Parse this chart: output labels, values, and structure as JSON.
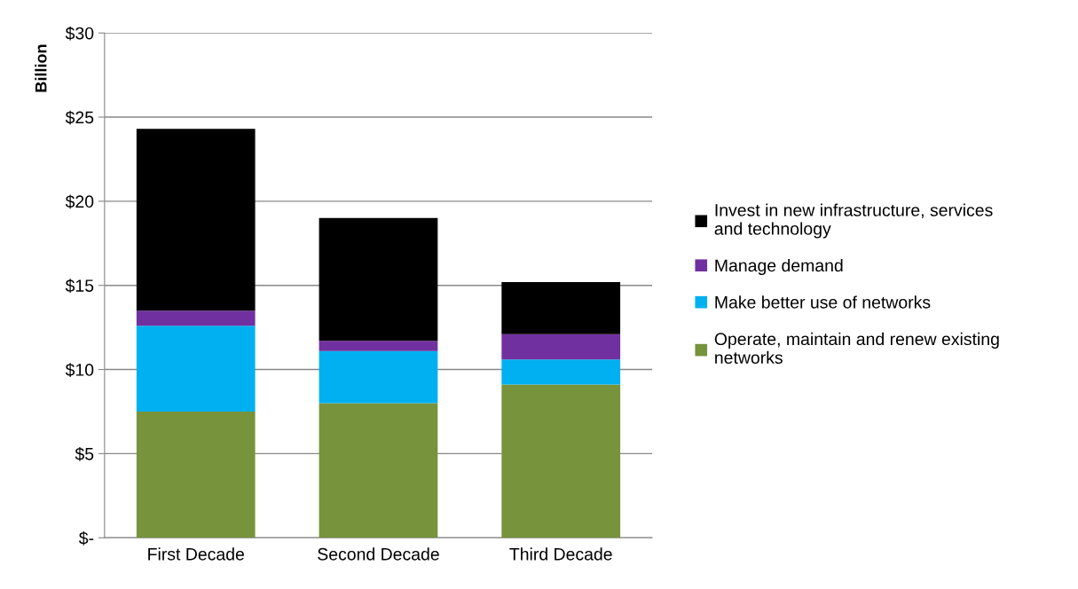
{
  "chart_data": {
    "type": "bar",
    "stacked": true,
    "ylabel": "Billion",
    "categories": [
      "First Decade",
      "Second Decade",
      "Third Decade"
    ],
    "series": [
      {
        "name": "Operate, maintain and renew existing networks",
        "color": "#77933c",
        "values": [
          7.5,
          8.0,
          9.1
        ]
      },
      {
        "name": "Make better use of networks",
        "color": "#00b0f0",
        "values": [
          5.1,
          3.1,
          1.5
        ]
      },
      {
        "name": "Manage demand",
        "color": "#7030a0",
        "values": [
          0.9,
          0.6,
          1.5
        ]
      },
      {
        "name": "Invest in new infrastructure, services and technology",
        "color": "#000000",
        "values": [
          10.8,
          7.3,
          3.1
        ]
      }
    ],
    "ylim": [
      0,
      30
    ],
    "yticks": [
      {
        "value": 0,
        "label": "$-"
      },
      {
        "value": 5,
        "label": "$5"
      },
      {
        "value": 10,
        "label": "$10"
      },
      {
        "value": 15,
        "label": "$15"
      },
      {
        "value": 20,
        "label": "$20"
      },
      {
        "value": 25,
        "label": "$25"
      },
      {
        "value": 30,
        "label": "$30"
      }
    ],
    "grid": "y",
    "legend": "right"
  }
}
